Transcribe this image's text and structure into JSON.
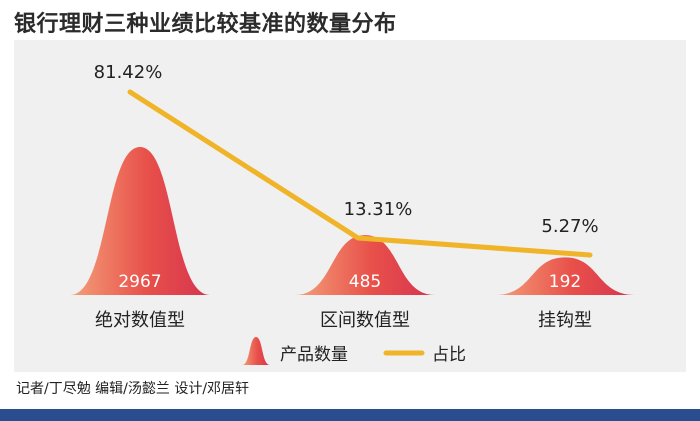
{
  "title": "银行理财三种业绩比较基准的数量分布",
  "credits": "记者/丁尽勉   编辑/汤懿兰   设计/邓居轩",
  "colors": {
    "hump": "#e5484d",
    "line": "#f0b429",
    "panel": "#f0f0f0",
    "footer": "#2a4d8f"
  },
  "chart_data": {
    "type": "bar",
    "categories": [
      "绝对数值型",
      "区间数值型",
      "挂钩型"
    ],
    "series": [
      {
        "name": "产品数量",
        "values": [
          2967,
          485,
          192
        ],
        "labels": [
          "2967",
          "485",
          "192"
        ]
      },
      {
        "name": "占比",
        "values": [
          81.42,
          13.31,
          5.27
        ],
        "labels": [
          "81.42%",
          "13.31%",
          "5.27%"
        ]
      }
    ],
    "legend": [
      "产品数量",
      "占比"
    ],
    "legend_position": "bottom",
    "grid": false
  }
}
